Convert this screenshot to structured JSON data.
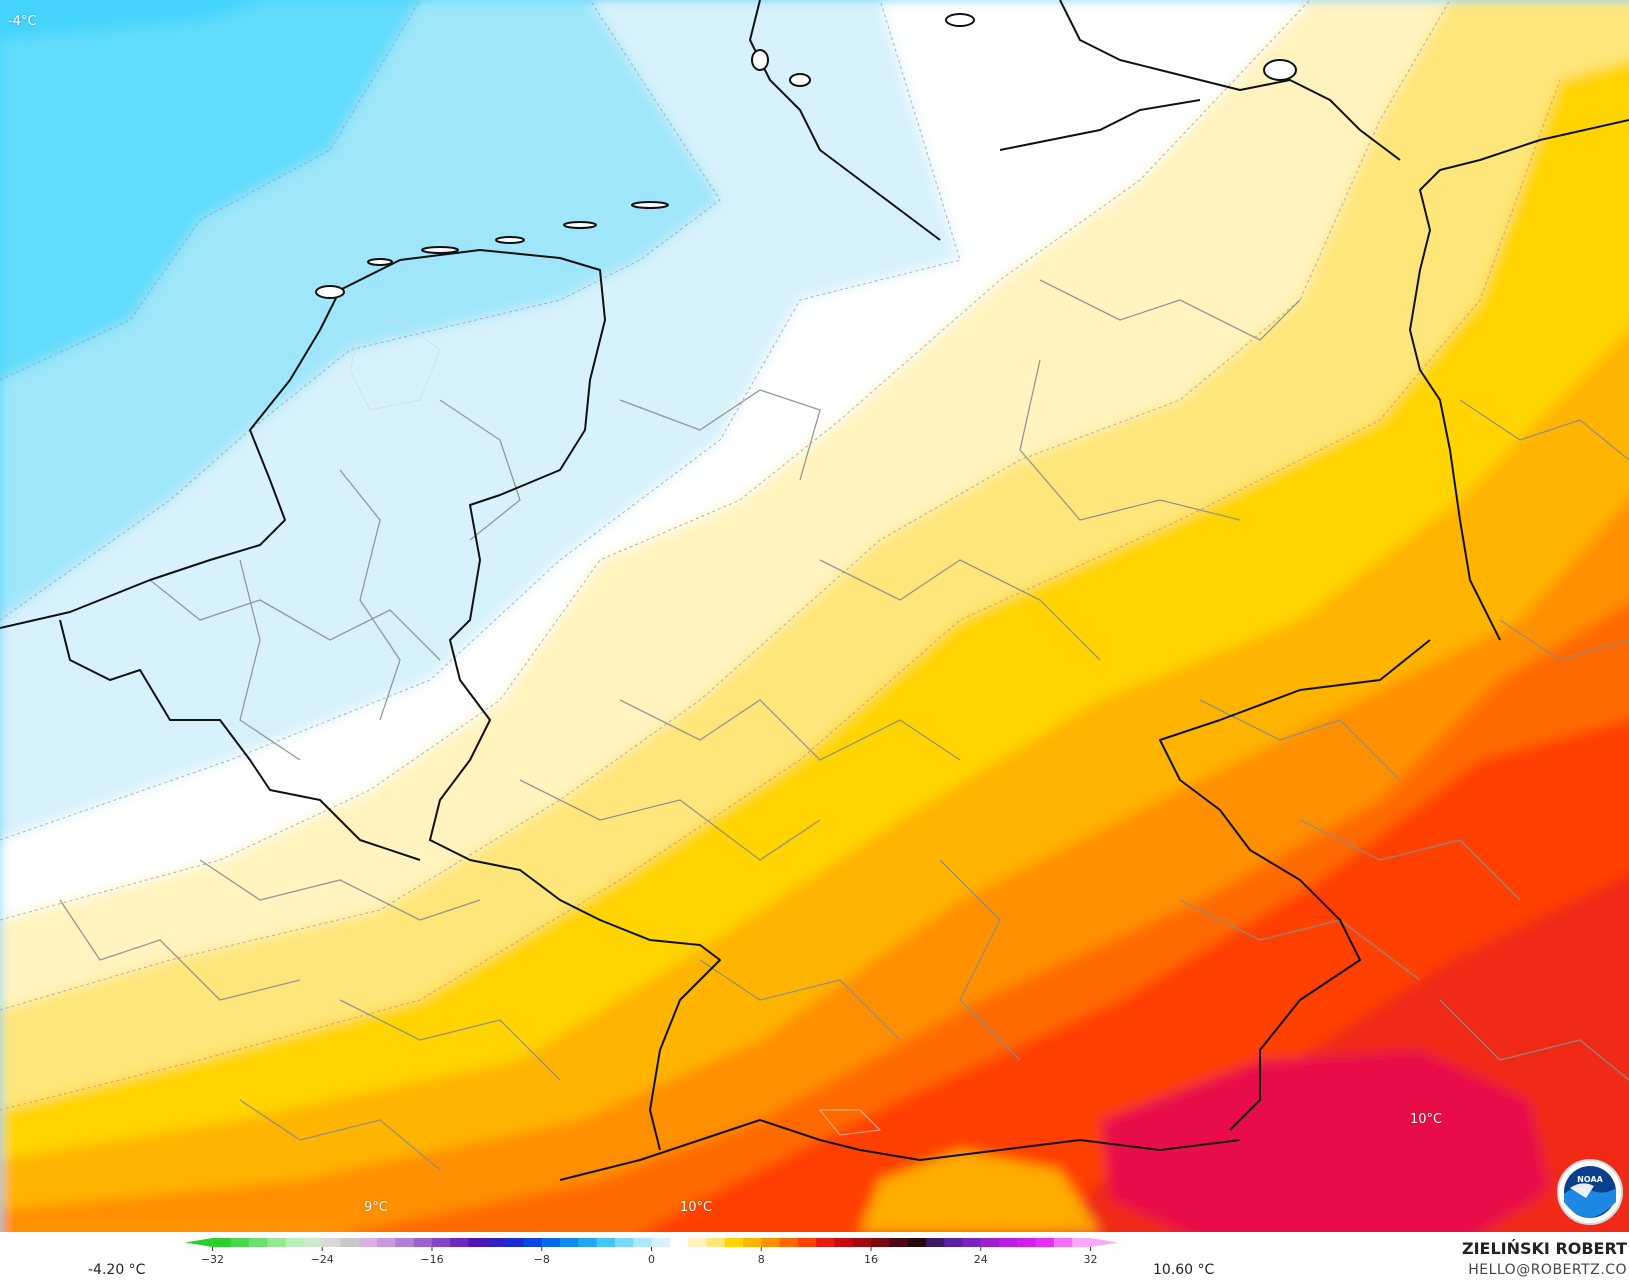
{
  "map": {
    "labels": [
      {
        "id": "nw",
        "text": "-4°C"
      },
      {
        "id": "sw",
        "text": "9°C"
      },
      {
        "id": "sc",
        "text": "10°C"
      },
      {
        "id": "se",
        "text": "10°C"
      }
    ]
  },
  "colorbar": {
    "min_label": "-4.20 °C",
    "max_label": "10.60 °C",
    "ticks": [
      "−32",
      "−24",
      "−16",
      "−8",
      "0",
      "8",
      "16",
      "24",
      "32"
    ],
    "range": [
      -34,
      34
    ],
    "colors": [
      "#2bd12b",
      "#4cd84c",
      "#6fe06f",
      "#93e893",
      "#b8efb8",
      "#cfe9cf",
      "#d8d8d8",
      "#c8c8c8",
      "#d9b3e8",
      "#c89ae0",
      "#b27fd8",
      "#9b62d0",
      "#8444c8",
      "#6c2ac0",
      "#4f14b8",
      "#3320c0",
      "#1a2ed0",
      "#0c46e0",
      "#0a66ea",
      "#1088f0",
      "#22a8f4",
      "#44c6f8",
      "#7ad8fa",
      "#aee8fb",
      "#d8f2fc",
      "#ffffff",
      "#fff4c0",
      "#ffe67a",
      "#ffd400",
      "#ffb400",
      "#ff9000",
      "#ff6a00",
      "#ff4000",
      "#e81a10",
      "#c80a10",
      "#a00a10",
      "#7a0a10",
      "#500810",
      "#280808",
      "#3a1a60",
      "#5a22a0",
      "#7a24c0",
      "#9a20d0",
      "#b81ee0",
      "#d21ef0",
      "#e62ef8",
      "#f46ef8",
      "#fca8fc"
    ]
  },
  "branding": {
    "name": "ZIELIŃSKI ROBERT",
    "email": "HELLO@ROBERTZ.CO",
    "logo_text": "NOAA"
  }
}
